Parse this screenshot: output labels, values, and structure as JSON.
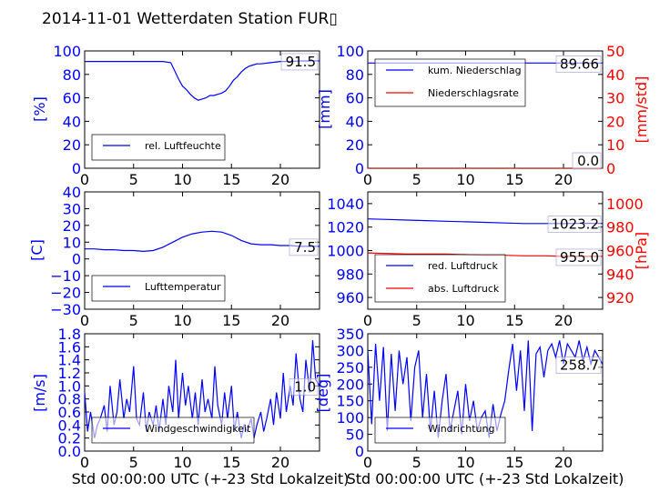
{
  "title": "2014-11-01 Wetterdaten Station FUR▯",
  "chart_data": [
    {
      "type": "line",
      "panel": "humidity",
      "ylabel": "[%]",
      "xlim": [
        0,
        24
      ],
      "ylim": [
        0,
        100
      ],
      "xticks": [
        "0",
        "5",
        "10",
        "15",
        "20"
      ],
      "yticks": [
        "0",
        "20",
        "40",
        "60",
        "80",
        "100"
      ],
      "grid": false,
      "legend_position": "lower-left",
      "last_value": "91.5",
      "series": [
        {
          "name": "rel. Luftfeuchte",
          "color": "#0000ff",
          "x": [
            0,
            2,
            4,
            6,
            8,
            8.8,
            9.2,
            9.6,
            10,
            10.4,
            10.8,
            11.2,
            11.6,
            12,
            12.4,
            12.8,
            13.2,
            13.6,
            14,
            14.4,
            14.8,
            15.2,
            15.6,
            16,
            16.4,
            16.8,
            17.2,
            17.6,
            18,
            19,
            20,
            21,
            22,
            23,
            24
          ],
          "y": [
            91,
            91,
            91,
            91,
            91,
            90,
            83,
            76,
            70,
            67,
            63,
            60,
            58,
            59,
            60,
            62,
            62,
            63,
            64,
            66,
            70,
            75,
            78,
            82,
            85,
            87,
            88,
            89,
            89,
            90,
            91,
            91,
            91.5,
            91.5,
            91.5
          ]
        }
      ]
    },
    {
      "type": "line",
      "panel": "precipitation",
      "ylabel": "[mm]",
      "ylabel_right": "[mm/std]",
      "xlim": [
        0,
        24
      ],
      "ylim": [
        0,
        100
      ],
      "ylim_right": [
        0,
        50
      ],
      "xticks": [
        "0",
        "5",
        "10",
        "15",
        "20"
      ],
      "yticks": [
        "0",
        "20",
        "40",
        "60",
        "80",
        "100"
      ],
      "yticks_right": [
        "0",
        "10",
        "20",
        "30",
        "40",
        "50"
      ],
      "grid": false,
      "legend_position": "top-left",
      "last_values": [
        "89.66",
        "0.0"
      ],
      "series": [
        {
          "name": "kum. Niederschlag",
          "color": "#0000ff",
          "axis": "left",
          "x": [
            0,
            24
          ],
          "y": [
            89.66,
            89.66
          ]
        },
        {
          "name": "Niederschlagsrate",
          "color": "#ff0000",
          "axis": "right",
          "x": [
            0,
            24
          ],
          "y": [
            0,
            0
          ]
        }
      ]
    },
    {
      "type": "line",
      "panel": "temperature",
      "ylabel": "[C]",
      "xlim": [
        0,
        24
      ],
      "ylim": [
        -30,
        40
      ],
      "xticks": [
        "0",
        "5",
        "10",
        "15",
        "20"
      ],
      "yticks": [
        "−30",
        "−20",
        "−10",
        "0",
        "10",
        "20",
        "30",
        "40"
      ],
      "grid": false,
      "legend_position": "lower-left",
      "last_value": "7.5",
      "series": [
        {
          "name": "Lufttemperatur",
          "color": "#0000ff",
          "x": [
            0,
            1,
            2,
            3,
            4,
            5,
            6,
            7,
            8,
            9,
            10,
            11,
            12,
            13,
            14,
            15,
            16,
            17,
            18,
            19,
            20,
            21,
            22,
            23,
            24
          ],
          "y": [
            6,
            6,
            5.5,
            5.5,
            5,
            5,
            4.5,
            5,
            7,
            10,
            13,
            15,
            16,
            16.5,
            16,
            14,
            11,
            9,
            8.5,
            8.5,
            8,
            8,
            7.5,
            7.5,
            7.5
          ]
        }
      ]
    },
    {
      "type": "line",
      "panel": "pressure",
      "ylabel_right": "[hPa]",
      "xlim": [
        0,
        24
      ],
      "ylim": [
        950,
        1050
      ],
      "ylim_right": [
        910,
        1010
      ],
      "xticks": [
        "0",
        "5",
        "10",
        "15",
        "20"
      ],
      "yticks": [
        "960",
        "980",
        "1000",
        "1020",
        "1040"
      ],
      "yticks_right": [
        "920",
        "940",
        "960",
        "980",
        "1000"
      ],
      "grid": false,
      "legend_position": "lower-left",
      "last_values": [
        "1023.2",
        "955.0"
      ],
      "series": [
        {
          "name": "red. Luftdruck",
          "color": "#0000ff",
          "axis": "left",
          "x": [
            0,
            2,
            4,
            6,
            8,
            10,
            12,
            14,
            16,
            18,
            20,
            22,
            24
          ],
          "y": [
            1027,
            1026.5,
            1026,
            1025.5,
            1025,
            1024.5,
            1024,
            1023.5,
            1023,
            1023,
            1023,
            1023.2,
            1023.2
          ]
        },
        {
          "name": "abs. Luftdruck",
          "color": "#ff0000",
          "axis": "right",
          "x": [
            0,
            2,
            4,
            6,
            8,
            10,
            12,
            14,
            16,
            18,
            20,
            22,
            24
          ],
          "y": [
            958,
            957.5,
            957,
            957,
            957,
            956.5,
            956,
            956,
            955.5,
            955.5,
            955,
            955,
            955
          ]
        }
      ]
    },
    {
      "type": "line",
      "panel": "windspeed",
      "ylabel": "[m/s]",
      "xlim": [
        0,
        24
      ],
      "ylim": [
        0,
        1.8
      ],
      "xticks": [
        "0",
        "5",
        "10",
        "15",
        "20"
      ],
      "yticks": [
        "0.0",
        "0.2",
        "0.4",
        "0.6",
        "0.8",
        "1.0",
        "1.2",
        "1.4",
        "1.6",
        "1.8"
      ],
      "grid": false,
      "legend_position": "lower-left",
      "last_value": "1.0",
      "series": [
        {
          "name": "Windgeschwindigkeit",
          "color": "#0000ff",
          "x": [
            0,
            0.3,
            0.6,
            1,
            1.3,
            1.6,
            2,
            2.3,
            2.6,
            3,
            3.3,
            3.6,
            4,
            4.3,
            4.6,
            5,
            5.3,
            5.6,
            6,
            6.3,
            6.6,
            7,
            7.3,
            7.6,
            8,
            8.3,
            8.6,
            9,
            9.3,
            9.6,
            10,
            10.3,
            10.6,
            11,
            11.3,
            11.6,
            12,
            12.3,
            12.6,
            13,
            13.3,
            13.6,
            14,
            14.3,
            14.6,
            15,
            15.3,
            15.6,
            16,
            16.3,
            16.6,
            17,
            17.3,
            17.6,
            18,
            18.3,
            18.6,
            19,
            19.3,
            19.6,
            20,
            20.3,
            20.6,
            21,
            21.3,
            21.6,
            22,
            22.3,
            22.6,
            23,
            23.3,
            23.6,
            24
          ],
          "y": [
            0.9,
            0.3,
            0.6,
            0.2,
            0.4,
            0.5,
            0.7,
            0.3,
            1.0,
            0.4,
            0.6,
            1.1,
            0.5,
            0.8,
            0.6,
            1.3,
            0.5,
            0.4,
            0.9,
            0.3,
            0.6,
            0.4,
            0.7,
            0.3,
            0.8,
            0.4,
            1.0,
            0.6,
            1.4,
            0.5,
            1.2,
            0.7,
            1.0,
            0.5,
            0.9,
            0.4,
            1.1,
            0.6,
            0.8,
            0.5,
            1.3,
            0.7,
            0.4,
            0.9,
            0.5,
            1.0,
            0.3,
            0.6,
            0.2,
            0.4,
            0.3,
            0.5,
            0.2,
            0.4,
            0.6,
            0.3,
            0.5,
            0.8,
            0.4,
            0.9,
            0.5,
            1.2,
            0.6,
            1.0,
            0.7,
            1.5,
            0.8,
            0.6,
            1.4,
            0.9,
            1.7,
            1.1,
            1.0
          ]
        }
      ]
    },
    {
      "type": "line",
      "panel": "winddirection",
      "ylabel": "[deg]",
      "xlim": [
        0,
        24
      ],
      "ylim": [
        0,
        350
      ],
      "xticks": [
        "0",
        "5",
        "10",
        "15",
        "20"
      ],
      "yticks": [
        "0",
        "50",
        "100",
        "150",
        "200",
        "250",
        "300",
        "350"
      ],
      "grid": false,
      "legend_position": "lower-left",
      "last_value": "258.7",
      "series": [
        {
          "name": "Windrichtung",
          "color": "#0000ff",
          "x": [
            0,
            0.4,
            0.8,
            1.2,
            1.6,
            2,
            2.4,
            2.8,
            3.2,
            3.6,
            4,
            4.4,
            4.8,
            5.2,
            5.6,
            6,
            6.4,
            6.8,
            7.2,
            7.6,
            8,
            8.4,
            8.8,
            9.2,
            9.6,
            10,
            10.4,
            10.8,
            11.2,
            11.6,
            12,
            12.4,
            12.8,
            13.2,
            13.6,
            14,
            14.4,
            14.8,
            15.2,
            15.6,
            16,
            16.4,
            16.8,
            17.2,
            17.6,
            18,
            18.4,
            18.8,
            19.2,
            19.6,
            20,
            20.4,
            20.8,
            21.2,
            21.6,
            22,
            22.4,
            22.8,
            23.2,
            23.6,
            24
          ],
          "y": [
            300,
            80,
            320,
            150,
            310,
            60,
            290,
            120,
            300,
            200,
            280,
            90,
            250,
            300,
            100,
            230,
            60,
            180,
            40,
            150,
            230,
            60,
            120,
            180,
            50,
            200,
            90,
            150,
            60,
            100,
            120,
            40,
            140,
            60,
            110,
            150,
            240,
            320,
            180,
            300,
            120,
            330,
            60,
            290,
            310,
            220,
            300,
            320,
            280,
            330,
            260,
            320,
            300,
            280,
            330,
            270,
            310,
            260,
            300,
            280,
            258.7
          ]
        }
      ]
    }
  ],
  "xaxis_label": "Std 00:00:00 UTC (+-23 Std Lokalzeit)"
}
